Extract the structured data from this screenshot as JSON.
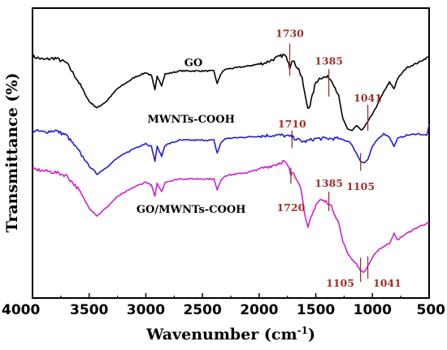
{
  "chart_data": {
    "type": "line",
    "xlabel": "Wavenumber (cm",
    "xlabel_sup": "-1",
    "xlabel_close": ")",
    "ylabel": "Transmittance (%)",
    "xlim": [
      4000,
      500
    ],
    "x_reversed": true,
    "x_ticks": [
      "4000",
      "3500",
      "3000",
      "2500",
      "2000",
      "1500",
      "1000",
      "500"
    ],
    "y_ticks_shown": false,
    "grid": false,
    "legend": "none",
    "peak_color": "#a0302a",
    "series": [
      {
        "name": "GO",
        "color": "#000000",
        "points": [
          [
            4000,
            70
          ],
          [
            3900,
            68
          ],
          [
            3800,
            69
          ],
          [
            3700,
            66
          ],
          [
            3600,
            55
          ],
          [
            3500,
            42
          ],
          [
            3430,
            38
          ],
          [
            3350,
            42
          ],
          [
            3250,
            50
          ],
          [
            3100,
            57
          ],
          [
            3000,
            60
          ],
          [
            2950,
            58
          ],
          [
            2920,
            49
          ],
          [
            2900,
            58
          ],
          [
            2860,
            52
          ],
          [
            2830,
            59
          ],
          [
            2700,
            61
          ],
          [
            2500,
            61
          ],
          [
            2400,
            61
          ],
          [
            2370,
            53
          ],
          [
            2340,
            59
          ],
          [
            2300,
            62
          ],
          [
            2100,
            64
          ],
          [
            1950,
            66
          ],
          [
            1850,
            69
          ],
          [
            1780,
            71
          ],
          [
            1740,
            67
          ],
          [
            1730,
            63
          ],
          [
            1710,
            68
          ],
          [
            1650,
            62
          ],
          [
            1620,
            56
          ],
          [
            1590,
            44
          ],
          [
            1570,
            38
          ],
          [
            1550,
            40
          ],
          [
            1500,
            54
          ],
          [
            1460,
            57
          ],
          [
            1420,
            57
          ],
          [
            1385,
            57
          ],
          [
            1350,
            54
          ],
          [
            1300,
            46
          ],
          [
            1260,
            31
          ],
          [
            1220,
            25
          ],
          [
            1180,
            24
          ],
          [
            1140,
            27
          ],
          [
            1100,
            24
          ],
          [
            1070,
            26
          ],
          [
            1041,
            30
          ],
          [
            1000,
            34
          ],
          [
            950,
            41
          ],
          [
            900,
            48
          ],
          [
            850,
            54
          ],
          [
            810,
            50
          ],
          [
            780,
            56
          ],
          [
            700,
            63
          ],
          [
            600,
            66
          ],
          [
            500,
            70
          ]
        ]
      },
      {
        "name": "MWNTs-COOH",
        "color": "#1f1fd0",
        "points": [
          [
            4000,
            24
          ],
          [
            3900,
            23
          ],
          [
            3800,
            24
          ],
          [
            3700,
            21
          ],
          [
            3600,
            12
          ],
          [
            3500,
            2
          ],
          [
            3430,
            -3
          ],
          [
            3350,
            1
          ],
          [
            3250,
            7
          ],
          [
            3100,
            13
          ],
          [
            3000,
            16
          ],
          [
            2950,
            14
          ],
          [
            2920,
            5
          ],
          [
            2900,
            14
          ],
          [
            2860,
            8
          ],
          [
            2830,
            15
          ],
          [
            2700,
            18
          ],
          [
            2500,
            18
          ],
          [
            2400,
            18
          ],
          [
            2370,
            10
          ],
          [
            2340,
            16
          ],
          [
            2300,
            19
          ],
          [
            2100,
            20
          ],
          [
            1900,
            21
          ],
          [
            1800,
            21
          ],
          [
            1710,
            20
          ],
          [
            1650,
            18
          ],
          [
            1600,
            17
          ],
          [
            1500,
            19
          ],
          [
            1400,
            19
          ],
          [
            1300,
            19
          ],
          [
            1200,
            17
          ],
          [
            1150,
            11
          ],
          [
            1105,
            5
          ],
          [
            1070,
            4
          ],
          [
            1041,
            6
          ],
          [
            1000,
            14
          ],
          [
            950,
            19
          ],
          [
            900,
            22
          ],
          [
            850,
            20
          ],
          [
            810,
            14
          ],
          [
            780,
            19
          ],
          [
            700,
            21
          ],
          [
            600,
            22
          ],
          [
            520,
            21
          ],
          [
            500,
            28
          ]
        ]
      },
      {
        "name": "GO/MWNTs-COOH",
        "color": "#cc22cc",
        "points": [
          [
            4000,
            0
          ],
          [
            3900,
            -1
          ],
          [
            3800,
            -2
          ],
          [
            3700,
            -4
          ],
          [
            3600,
            -12
          ],
          [
            3500,
            -24
          ],
          [
            3430,
            -29
          ],
          [
            3350,
            -24
          ],
          [
            3250,
            -17
          ],
          [
            3100,
            -11
          ],
          [
            3000,
            -8
          ],
          [
            2950,
            -10
          ],
          [
            2920,
            -17
          ],
          [
            2900,
            -9
          ],
          [
            2860,
            -14
          ],
          [
            2830,
            -8
          ],
          [
            2700,
            -6
          ],
          [
            2500,
            -6
          ],
          [
            2400,
            -6
          ],
          [
            2370,
            -13
          ],
          [
            2340,
            -7
          ],
          [
            2300,
            -4
          ],
          [
            2100,
            -2
          ],
          [
            1950,
            1
          ],
          [
            1850,
            3
          ],
          [
            1780,
            5
          ],
          [
            1740,
            1
          ],
          [
            1720,
            -4
          ],
          [
            1700,
            -2
          ],
          [
            1650,
            -8
          ],
          [
            1620,
            -16
          ],
          [
            1590,
            -31
          ],
          [
            1570,
            -37
          ],
          [
            1550,
            -32
          ],
          [
            1500,
            -22
          ],
          [
            1460,
            -19
          ],
          [
            1420,
            -20
          ],
          [
            1385,
            -21
          ],
          [
            1350,
            -25
          ],
          [
            1300,
            -33
          ],
          [
            1260,
            -45
          ],
          [
            1220,
            -52
          ],
          [
            1180,
            -56
          ],
          [
            1140,
            -59
          ],
          [
            1105,
            -63
          ],
          [
            1070,
            -64
          ],
          [
            1041,
            -60
          ],
          [
            1000,
            -55
          ],
          [
            950,
            -50
          ],
          [
            900,
            -48
          ],
          [
            850,
            -46
          ],
          [
            810,
            -40
          ],
          [
            780,
            -44
          ],
          [
            700,
            -40
          ],
          [
            600,
            -36
          ],
          [
            500,
            -33
          ]
        ]
      }
    ],
    "series_labels": [
      {
        "text": "GO",
        "at": [
          2580,
          64
        ]
      },
      {
        "text": "MWNTs-COOH",
        "at": [
          2600,
          29
        ]
      },
      {
        "text": "GO/MWNTs-COOH",
        "at": [
          2600,
          -27
        ]
      }
    ],
    "peak_annotations": [
      {
        "text": "1730",
        "x": 1730,
        "tick": [
          58,
          78
        ],
        "label_at": [
          1730,
          82
        ]
      },
      {
        "text": "1385",
        "x": 1385,
        "tick": [
          45,
          62
        ],
        "label_at": [
          1385,
          65
        ]
      },
      {
        "text": "1041",
        "x": 1041,
        "tick": [
          24,
          40
        ],
        "label_at": [
          1041,
          42
        ]
      },
      {
        "text": "1710",
        "x": 1710,
        "tick": [
          13,
          24
        ],
        "label_at": [
          1710,
          26
        ]
      },
      {
        "text": "1105",
        "x": 1105,
        "tick": [
          -1,
          10
        ],
        "label_at": [
          1105,
          -13
        ]
      },
      {
        "text": "1720",
        "x": 1720,
        "tick": [
          -9,
          1
        ],
        "label_at": [
          1720,
          -26
        ]
      },
      {
        "text": "1385",
        "x": 1385,
        "tick": [
          -26,
          -14
        ],
        "label_at": [
          1385,
          -11
        ]
      },
      {
        "text": "1105",
        "x": 1105,
        "tick": [
          -70,
          -55
        ],
        "label_at": [
          1285,
          -73
        ]
      },
      {
        "text": "1041",
        "x": 1041,
        "tick": [
          -68,
          -54
        ],
        "label_at": [
          870,
          -73
        ]
      }
    ],
    "ylim": [
      -80,
      100
    ]
  }
}
